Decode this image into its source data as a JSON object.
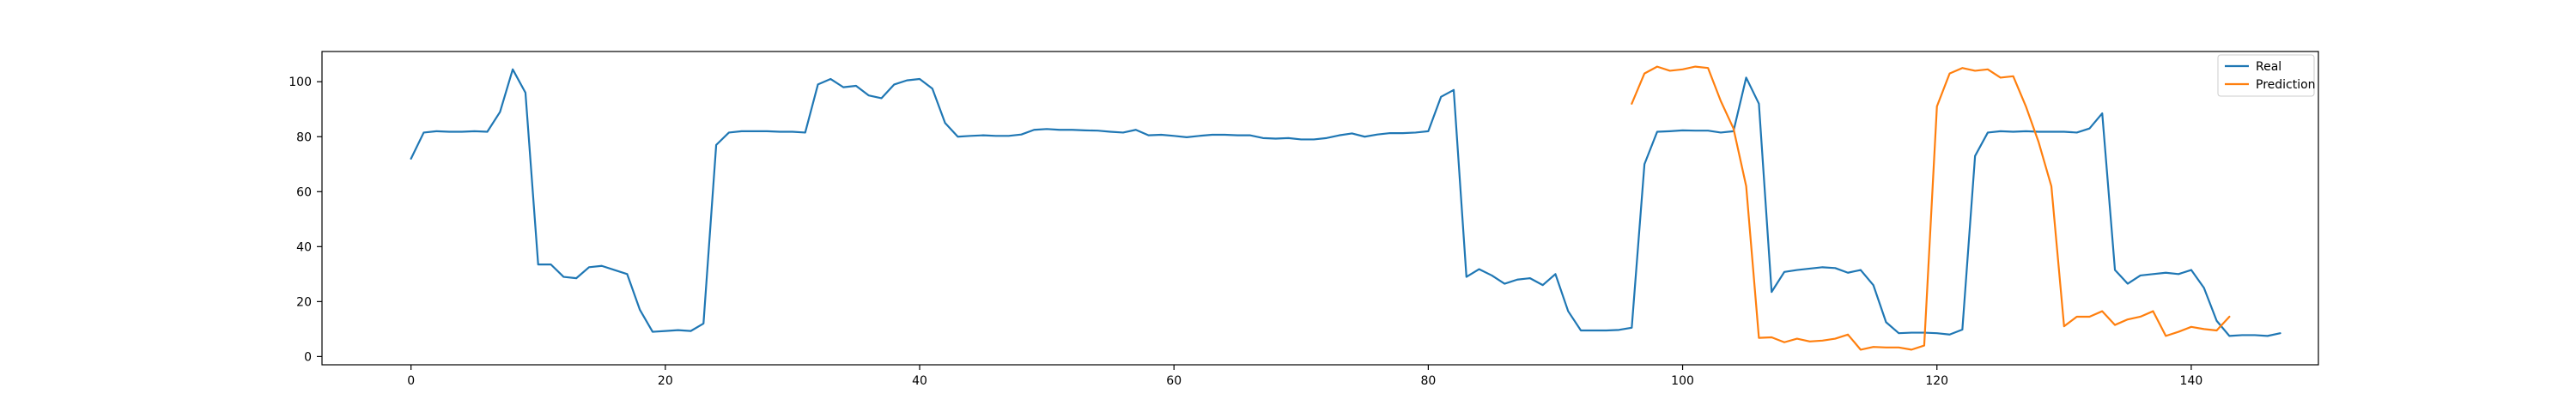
{
  "chart_data": {
    "type": "line",
    "xlim": [
      -7,
      150
    ],
    "ylim": [
      -3,
      111
    ],
    "x_ticks": [
      0,
      20,
      40,
      60,
      80,
      100,
      120,
      140
    ],
    "y_ticks": [
      0,
      20,
      40,
      60,
      80,
      100
    ],
    "grid": false,
    "legend_position": "top-right",
    "series": [
      {
        "name": "Real",
        "color": "#1f77b4",
        "x_start": 0,
        "values": [
          72,
          81.5,
          82,
          81.8,
          81.8,
          82,
          81.8,
          89,
          104.5,
          96,
          33.5,
          33.5,
          29,
          28.5,
          32.5,
          33,
          31.5,
          30,
          17,
          9,
          9.3,
          9.6,
          9.3,
          12,
          77,
          81.5,
          82,
          82,
          82,
          81.8,
          81.8,
          81.5,
          99,
          101,
          98,
          98.5,
          95,
          94,
          99,
          100.5,
          101,
          97.5,
          85,
          80,
          80.3,
          80.5,
          80.3,
          80.3,
          80.8,
          82.5,
          82.8,
          82.5,
          82.5,
          82.3,
          82.2,
          81.8,
          81.5,
          82.5,
          80.5,
          80.7,
          80.3,
          79.8,
          80.3,
          80.7,
          80.7,
          80.5,
          80.5,
          79.5,
          79.3,
          79.5,
          79,
          79,
          79.5,
          80.5,
          81.2,
          80,
          80.8,
          81.3,
          81.3,
          81.5,
          82,
          94.5,
          97,
          29,
          31.8,
          29.5,
          26.5,
          28,
          28.5,
          26,
          30,
          16.5,
          9.5,
          9.5,
          9.5,
          9.7,
          10.5,
          70,
          81.8,
          82,
          82.3,
          82.2,
          82.2,
          81.5,
          82,
          101.5,
          92,
          23.5,
          30.8,
          31.5,
          32,
          32.5,
          32.2,
          30.5,
          31.5,
          26,
          12.5,
          8.5,
          8.7,
          8.7,
          8.5,
          8,
          9.8,
          73,
          81.5,
          82,
          81.8,
          82,
          81.8,
          81.8,
          81.8,
          81.5,
          83,
          88.5,
          31.5,
          26.5,
          29.5,
          30,
          30.5,
          30,
          31.5,
          25,
          13,
          7.5,
          7.8,
          7.8,
          7.5,
          8.5
        ]
      },
      {
        "name": "Prediction",
        "color": "#ff7f0e",
        "x_start": 96,
        "values": [
          92,
          103,
          105.5,
          104,
          104.5,
          105.5,
          105,
          93,
          83,
          62,
          6.8,
          7,
          5.2,
          6.5,
          5.5,
          5.8,
          6.5,
          8,
          2.5,
          3.5,
          3.3,
          3.3,
          2.5,
          4,
          91,
          103,
          105,
          104,
          104.5,
          101.5,
          102,
          91,
          78,
          62,
          11,
          14.5,
          14.5,
          16.5,
          11.5,
          13.5,
          14.5,
          16.5,
          7.5,
          9,
          10.8,
          10,
          9.5,
          14.5
        ]
      }
    ]
  }
}
